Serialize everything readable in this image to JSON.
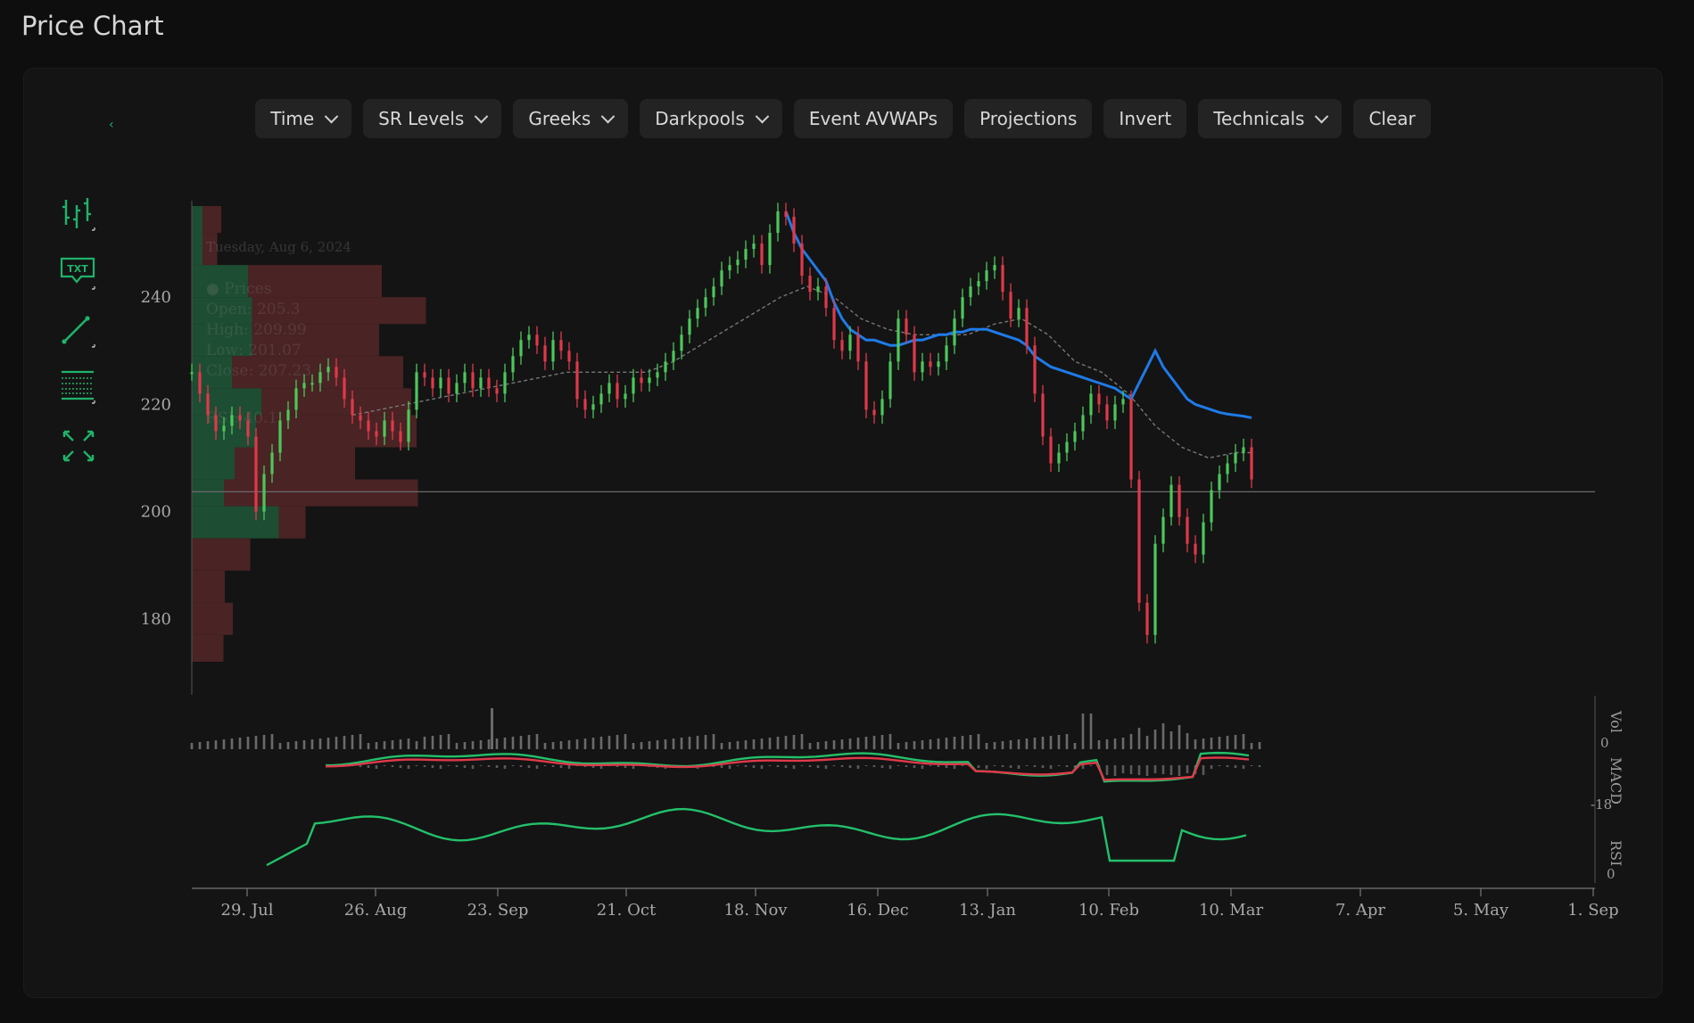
{
  "page": {
    "title": "Price Chart"
  },
  "toolbar": {
    "buttons": [
      {
        "label": "Time",
        "dropdown": true
      },
      {
        "label": "SR Levels",
        "dropdown": true
      },
      {
        "label": "Greeks",
        "dropdown": true
      },
      {
        "label": "Darkpools",
        "dropdown": true
      },
      {
        "label": "Event AVWAPs",
        "dropdown": false
      },
      {
        "label": "Projections",
        "dropdown": false
      },
      {
        "label": "Invert",
        "dropdown": false
      },
      {
        "label": "Technicals",
        "dropdown": true
      },
      {
        "label": "Clear",
        "dropdown": false
      }
    ]
  },
  "tools": [
    "candles-tool-icon",
    "text-annotation-icon",
    "trendline-icon",
    "levels-grid-icon",
    "fullscreen-icon"
  ],
  "tooltip": {
    "date": "Tuesday, Aug 6, 2024",
    "series": "● Prices",
    "open": "Open: 205.3",
    "high": "High: 209.99",
    "low": "Low: 201.07",
    "close": "Close: 207.23",
    "extra": "RSI: 40.1"
  },
  "colors": {
    "up": "#4cc75b",
    "down": "#e0394a",
    "vwap": "#1f7ae8",
    "vp_up": "#1d4d33",
    "vp_down": "#4a2324",
    "macd": "#23c06a",
    "signal": "#e0394a",
    "rsi": "#23c06a"
  },
  "chart_data": {
    "type": "candlestick",
    "x_ticks": [
      "29. Jul",
      "26. Aug",
      "23. Sep",
      "21. Oct",
      "18. Nov",
      "16. Dec",
      "13. Jan",
      "10. Feb",
      "10. Mar",
      "7. Apr",
      "5. May",
      "1. Sep"
    ],
    "y_ticks": [
      180,
      200,
      220,
      240
    ],
    "ylim": [
      166,
      258
    ],
    "reference_line": 203.7,
    "close_path": [
      [
        0,
        226
      ],
      [
        3,
        222
      ],
      [
        6,
        218
      ],
      [
        9,
        215
      ],
      [
        12,
        216
      ],
      [
        15,
        218
      ],
      [
        18,
        217
      ],
      [
        21,
        214
      ],
      [
        24,
        200
      ],
      [
        27,
        207
      ],
      [
        30,
        211
      ],
      [
        33,
        217
      ],
      [
        36,
        219
      ],
      [
        39,
        223
      ],
      [
        42,
        224
      ],
      [
        45,
        224
      ],
      [
        48,
        226
      ],
      [
        51,
        227
      ],
      [
        54,
        225
      ],
      [
        57,
        221
      ],
      [
        60,
        218
      ],
      [
        63,
        217
      ],
      [
        66,
        215
      ],
      [
        69,
        214
      ],
      [
        72,
        217
      ],
      [
        75,
        215
      ],
      [
        78,
        213
      ],
      [
        81,
        219
      ],
      [
        84,
        226
      ],
      [
        87,
        225
      ],
      [
        90,
        223
      ],
      [
        93,
        225
      ],
      [
        96,
        222
      ],
      [
        99,
        224
      ],
      [
        102,
        226
      ],
      [
        105,
        223
      ],
      [
        108,
        225
      ],
      [
        111,
        223
      ],
      [
        114,
        222
      ],
      [
        117,
        226
      ],
      [
        120,
        229
      ],
      [
        123,
        232
      ],
      [
        126,
        233
      ],
      [
        129,
        231
      ],
      [
        132,
        228
      ],
      [
        135,
        232
      ],
      [
        138,
        230
      ],
      [
        141,
        228
      ],
      [
        144,
        221
      ],
      [
        147,
        219
      ],
      [
        150,
        220
      ],
      [
        153,
        222
      ],
      [
        156,
        224
      ],
      [
        159,
        221
      ],
      [
        162,
        222
      ],
      [
        165,
        225
      ],
      [
        168,
        224
      ],
      [
        171,
        225
      ],
      [
        174,
        226
      ],
      [
        177,
        228
      ],
      [
        180,
        230
      ],
      [
        183,
        233
      ],
      [
        186,
        236
      ],
      [
        189,
        238
      ],
      [
        192,
        240
      ],
      [
        195,
        242
      ],
      [
        198,
        245
      ],
      [
        201,
        246
      ],
      [
        204,
        247
      ],
      [
        207,
        249
      ],
      [
        210,
        250
      ],
      [
        213,
        246
      ],
      [
        216,
        252
      ],
      [
        219,
        256
      ],
      [
        222,
        255
      ],
      [
        225,
        250
      ],
      [
        228,
        244
      ],
      [
        231,
        241
      ],
      [
        234,
        242
      ],
      [
        237,
        238
      ],
      [
        240,
        232
      ],
      [
        243,
        230
      ],
      [
        246,
        233
      ],
      [
        249,
        228
      ],
      [
        252,
        219
      ],
      [
        255,
        218
      ],
      [
        258,
        221
      ],
      [
        261,
        228
      ],
      [
        264,
        236
      ],
      [
        267,
        233
      ],
      [
        270,
        226
      ],
      [
        273,
        228
      ],
      [
        276,
        227
      ],
      [
        279,
        228
      ],
      [
        282,
        231
      ],
      [
        285,
        236
      ],
      [
        288,
        240
      ],
      [
        291,
        242
      ],
      [
        294,
        243
      ],
      [
        297,
        245
      ],
      [
        300,
        246
      ],
      [
        303,
        241
      ],
      [
        306,
        236
      ],
      [
        309,
        238
      ],
      [
        312,
        231
      ],
      [
        315,
        222
      ],
      [
        318,
        214
      ],
      [
        321,
        209
      ],
      [
        324,
        211
      ],
      [
        327,
        213
      ],
      [
        330,
        215
      ],
      [
        333,
        218
      ],
      [
        336,
        222
      ],
      [
        339,
        220
      ],
      [
        342,
        217
      ],
      [
        345,
        220
      ],
      [
        348,
        221
      ],
      [
        351,
        206
      ],
      [
        354,
        183
      ],
      [
        357,
        177
      ],
      [
        360,
        194
      ],
      [
        363,
        199
      ],
      [
        366,
        205
      ],
      [
        369,
        199
      ],
      [
        372,
        194
      ],
      [
        375,
        192
      ],
      [
        378,
        198
      ],
      [
        381,
        204
      ],
      [
        384,
        207
      ],
      [
        387,
        209
      ],
      [
        390,
        211
      ],
      [
        393,
        212
      ],
      [
        396,
        206
      ]
    ],
    "vwap_path": [
      [
        360,
        230
      ],
      [
        363,
        227
      ],
      [
        366,
        225
      ],
      [
        369,
        223
      ],
      [
        372,
        221
      ],
      [
        375,
        220
      ],
      [
        378,
        219.5
      ],
      [
        381,
        219
      ],
      [
        384,
        218.5
      ],
      [
        387,
        218.2
      ],
      [
        390,
        218
      ],
      [
        393,
        217.8
      ],
      [
        396,
        217.5
      ],
      [
        222,
        256
      ],
      [
        225,
        252
      ],
      [
        228,
        249
      ],
      [
        231,
        247
      ],
      [
        234,
        245
      ],
      [
        237,
        243
      ],
      [
        240,
        239
      ],
      [
        243,
        236
      ],
      [
        246,
        234
      ],
      [
        249,
        233
      ],
      [
        252,
        232
      ],
      [
        255,
        232
      ],
      [
        258,
        231.5
      ],
      [
        261,
        231
      ],
      [
        264,
        231
      ],
      [
        267,
        231.5
      ],
      [
        270,
        232
      ],
      [
        273,
        232
      ],
      [
        276,
        232.5
      ],
      [
        279,
        233
      ],
      [
        282,
        233
      ],
      [
        285,
        233.5
      ],
      [
        288,
        233.5
      ],
      [
        291,
        234
      ],
      [
        294,
        234
      ],
      [
        297,
        234
      ],
      [
        300,
        233.5
      ],
      [
        303,
        233
      ],
      [
        306,
        232.5
      ],
      [
        309,
        232
      ],
      [
        312,
        231
      ],
      [
        315,
        229
      ],
      [
        318,
        228
      ],
      [
        321,
        227
      ],
      [
        324,
        226.5
      ],
      [
        327,
        226
      ],
      [
        330,
        225.5
      ],
      [
        333,
        225
      ],
      [
        336,
        224.5
      ],
      [
        339,
        224
      ],
      [
        342,
        223.5
      ],
      [
        345,
        223
      ],
      [
        348,
        222
      ],
      [
        351,
        221
      ]
    ],
    "sma_path": [
      [
        60,
        218
      ],
      [
        70,
        219
      ],
      [
        80,
        220
      ],
      [
        90,
        221
      ],
      [
        100,
        222
      ],
      [
        110,
        223
      ],
      [
        120,
        224
      ],
      [
        130,
        225
      ],
      [
        140,
        226
      ],
      [
        150,
        226
      ],
      [
        160,
        226
      ],
      [
        170,
        226
      ],
      [
        180,
        228
      ],
      [
        190,
        231
      ],
      [
        200,
        234
      ],
      [
        210,
        237
      ],
      [
        220,
        240
      ],
      [
        230,
        242
      ],
      [
        240,
        240
      ],
      [
        250,
        236
      ],
      [
        260,
        234
      ],
      [
        270,
        233
      ],
      [
        280,
        233
      ],
      [
        290,
        233
      ],
      [
        300,
        235
      ],
      [
        310,
        236
      ],
      [
        320,
        233
      ],
      [
        330,
        228
      ],
      [
        340,
        226
      ],
      [
        350,
        222
      ],
      [
        360,
        216
      ],
      [
        370,
        212
      ],
      [
        380,
        210
      ],
      [
        390,
        211
      ],
      [
        396,
        211
      ]
    ],
    "volume_profile": [
      {
        "price": [
          252,
          257
        ],
        "up": 8,
        "down": 14
      },
      {
        "price": [
          246,
          252
        ],
        "up": 8,
        "down": 11
      },
      {
        "price": [
          240,
          246
        ],
        "up": 42,
        "down": 100
      },
      {
        "price": [
          235,
          240
        ],
        "up": 45,
        "down": 130
      },
      {
        "price": [
          229,
          235
        ],
        "up": 45,
        "down": 95
      },
      {
        "price": [
          223,
          229
        ],
        "up": 30,
        "down": 128
      },
      {
        "price": [
          218,
          223
        ],
        "up": 52,
        "down": 112
      },
      {
        "price": [
          212,
          218
        ],
        "up": 48,
        "down": 120
      },
      {
        "price": [
          206,
          212
        ],
        "up": 32,
        "down": 90
      },
      {
        "price": [
          201,
          206
        ],
        "up": 24,
        "down": 145
      },
      {
        "price": [
          195,
          201
        ],
        "up": 65,
        "down": 20
      },
      {
        "price": [
          189,
          195
        ],
        "up": 0,
        "down": 43
      },
      {
        "price": [
          183,
          189
        ],
        "up": 0,
        "down": 24
      },
      {
        "price": [
          177,
          183
        ],
        "up": 0,
        "down": 30
      },
      {
        "price": [
          172,
          177
        ],
        "up": 0,
        "down": 23
      }
    ],
    "indicators": {
      "volume_label": "Vol",
      "volume_tick": "0",
      "macd_label": "MACD",
      "macd_ticks": [
        "0",
        "-18"
      ],
      "rsi_label": "RSI",
      "rsi_tick": "0"
    }
  }
}
